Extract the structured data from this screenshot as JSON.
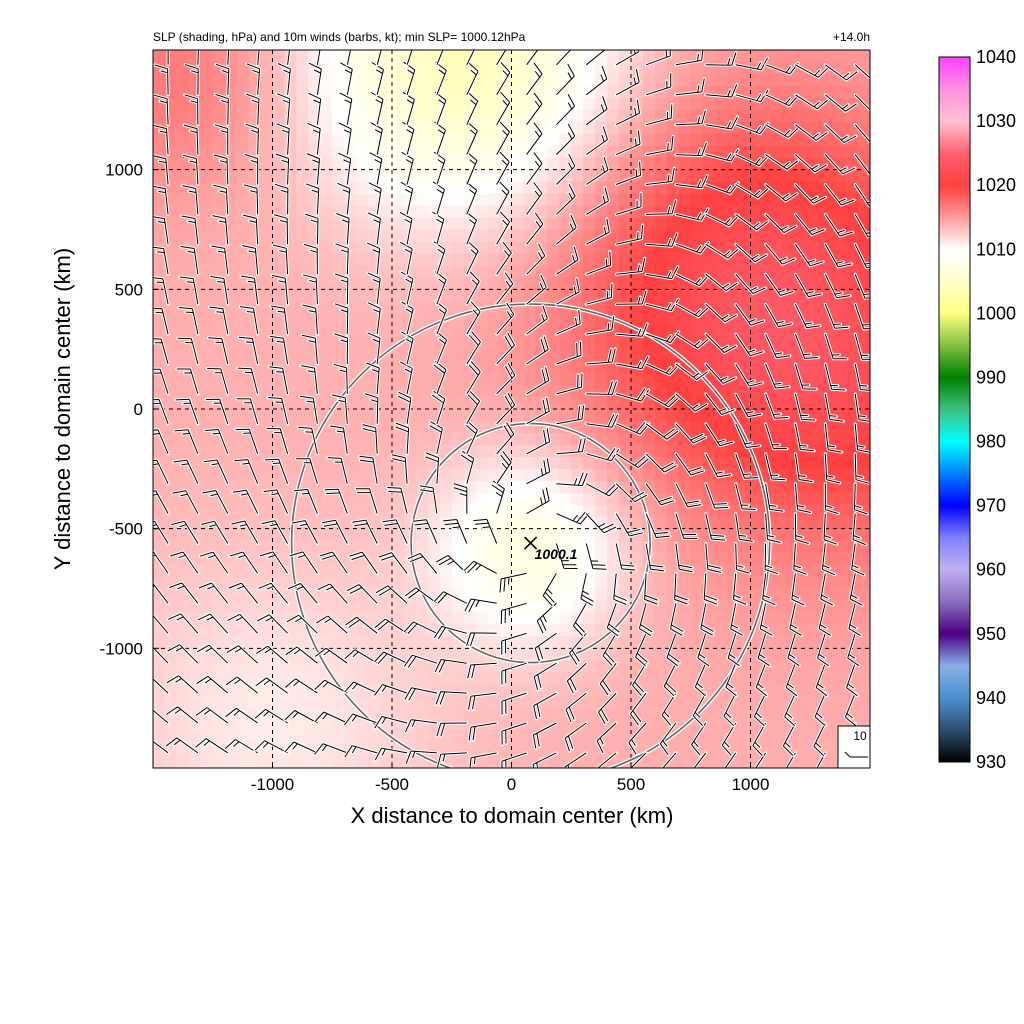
{
  "chart_data": {
    "type": "heatmap",
    "title": "SLP (shading, hPa) and 10m winds (barbs, kt); min SLP= 1000.12hPa",
    "forecast_time": "+14.0h",
    "xlabel": "X distance to domain center (km)",
    "ylabel": "Y distance to domain center (km)",
    "xlim": [
      -1500,
      1500
    ],
    "ylim": [
      -1500,
      1500
    ],
    "x_ticks": [
      -1000,
      -500,
      0,
      500,
      1000
    ],
    "y_ticks": [
      1000,
      500,
      0,
      -500,
      -1000
    ],
    "x_tick_labels": [
      "-1000",
      "-500",
      "0",
      "500",
      "1000"
    ],
    "y_tick_labels": [
      "1000",
      "500",
      "0",
      "-500",
      "-1000"
    ],
    "grid": true,
    "colorbar": {
      "min": 930,
      "max": 1040,
      "ticks": [
        1040,
        1030,
        1020,
        1010,
        1000,
        990,
        980,
        970,
        960,
        950,
        940,
        930
      ],
      "tick_labels": [
        "1040",
        "1030",
        "1020",
        "1010",
        "1000",
        "990",
        "980",
        "970",
        "960",
        "950",
        "940",
        "930"
      ],
      "stops": [
        {
          "v": 930,
          "c": "#000000"
        },
        {
          "v": 935,
          "c": "#2f4f6f"
        },
        {
          "v": 940,
          "c": "#4a90d0"
        },
        {
          "v": 945,
          "c": "#8ab0e8"
        },
        {
          "v": 950,
          "c": "#4b0082"
        },
        {
          "v": 955,
          "c": "#8a70c0"
        },
        {
          "v": 960,
          "c": "#c0b0f0"
        },
        {
          "v": 965,
          "c": "#8080ff"
        },
        {
          "v": 970,
          "c": "#0000ff"
        },
        {
          "v": 975,
          "c": "#0080ff"
        },
        {
          "v": 980,
          "c": "#00ffff"
        },
        {
          "v": 985,
          "c": "#40c080"
        },
        {
          "v": 990,
          "c": "#008000"
        },
        {
          "v": 995,
          "c": "#80c040"
        },
        {
          "v": 1000,
          "c": "#ffff80"
        },
        {
          "v": 1005,
          "c": "#ffffc8"
        },
        {
          "v": 1010,
          "c": "#ffffff"
        },
        {
          "v": 1015,
          "c": "#ff9a9a"
        },
        {
          "v": 1020,
          "c": "#ff4040"
        },
        {
          "v": 1025,
          "c": "#ff6070"
        },
        {
          "v": 1030,
          "c": "#ffc0d0"
        },
        {
          "v": 1035,
          "c": "#ff90e0"
        },
        {
          "v": 1040,
          "c": "#ff40ff"
        }
      ]
    },
    "storm_center": {
      "x": 80,
      "y": -560,
      "label": "1000.1"
    },
    "range_rings": [
      {
        "cx": 80,
        "cy": -560,
        "radius_km": 500
      },
      {
        "cx": 80,
        "cy": -560,
        "radius_km": 1000
      }
    ],
    "pressure_field": {
      "background": 1014,
      "features": [
        {
          "x": 80,
          "y": -580,
          "dp": -7,
          "sigma": 280
        },
        {
          "x": -200,
          "y": 1450,
          "dp": -10,
          "sigma": 450
        },
        {
          "x": 1000,
          "y": 500,
          "dp": 8,
          "sigma": 550
        },
        {
          "x": 1500,
          "y": 0,
          "dp": 4,
          "sigma": 500
        },
        {
          "x": -1400,
          "y": 1400,
          "dp": 3,
          "sigma": 350
        },
        {
          "x": -1000,
          "y": -1300,
          "dp": -3,
          "sigma": 500
        }
      ]
    },
    "wind_barb_reference": {
      "label": "10"
    }
  }
}
